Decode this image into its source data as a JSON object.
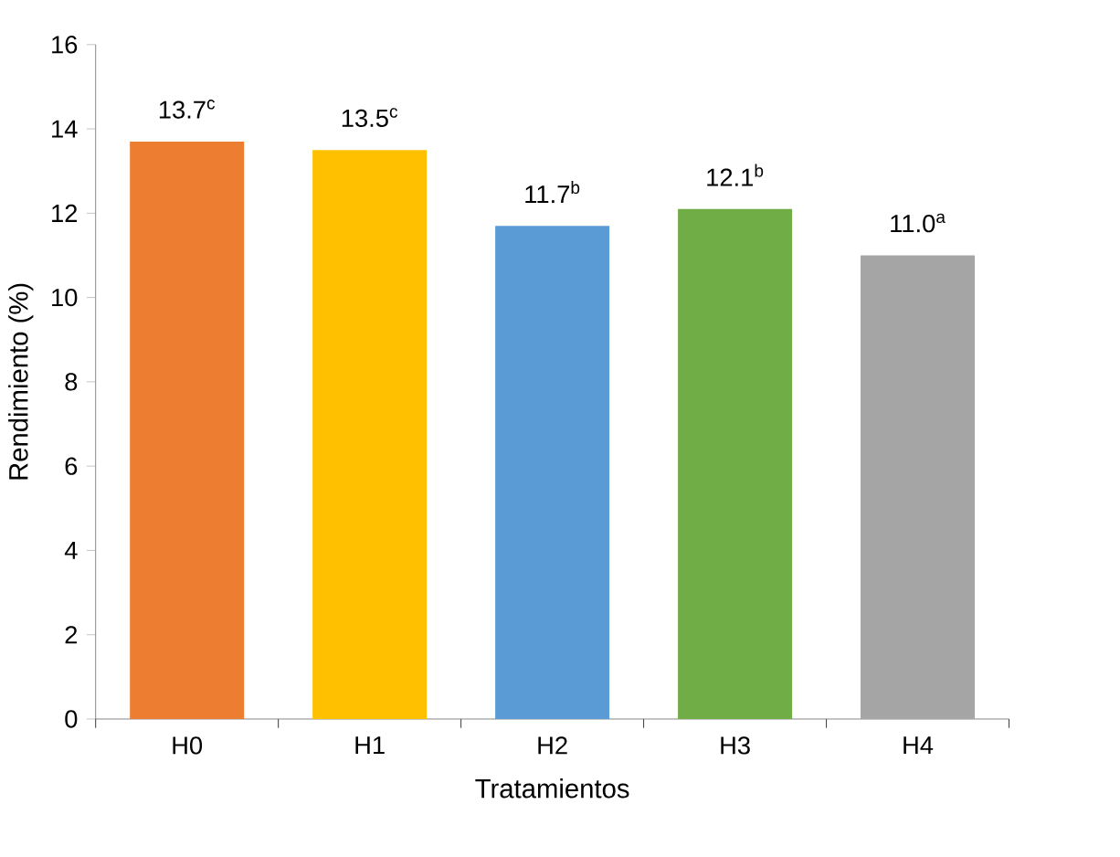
{
  "chart_data": {
    "type": "bar",
    "xlabel": "Tratamientos",
    "ylabel": "Rendimiento (%)",
    "categories": [
      "H0",
      "H1",
      "H2",
      "H3",
      "H4"
    ],
    "values": [
      13.7,
      13.5,
      11.7,
      12.1,
      11.0
    ],
    "colors": [
      "#ed7d31",
      "#ffc000",
      "#5b9bd5",
      "#70ad47",
      "#a5a5a5"
    ],
    "value_labels": [
      "13.7$^{c}$",
      "13.5$^{c}$",
      "11.7$^{b}$",
      "12.1$^{b}$",
      "11.0$^{a}$"
    ],
    "ylim": [
      0,
      16
    ],
    "yticks": [
      0,
      2,
      4,
      6,
      8,
      10,
      12,
      14,
      16
    ],
    "grid": false
  }
}
